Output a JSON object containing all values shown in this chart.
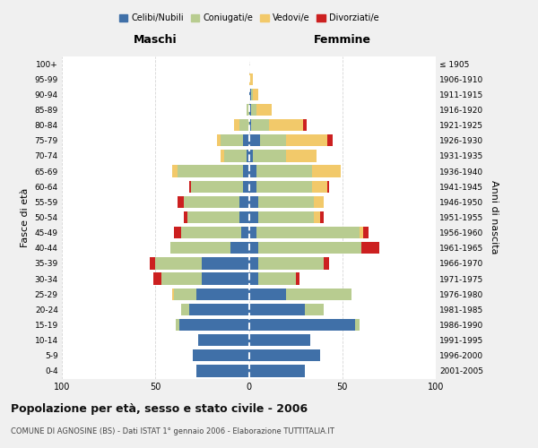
{
  "age_groups": [
    "0-4",
    "5-9",
    "10-14",
    "15-19",
    "20-24",
    "25-29",
    "30-34",
    "35-39",
    "40-44",
    "45-49",
    "50-54",
    "55-59",
    "60-64",
    "65-69",
    "70-74",
    "75-79",
    "80-84",
    "85-89",
    "90-94",
    "95-99",
    "100+"
  ],
  "birth_years": [
    "2001-2005",
    "1996-2000",
    "1991-1995",
    "1986-1990",
    "1981-1985",
    "1976-1980",
    "1971-1975",
    "1966-1970",
    "1961-1965",
    "1956-1960",
    "1951-1955",
    "1946-1950",
    "1941-1945",
    "1936-1940",
    "1931-1935",
    "1926-1930",
    "1921-1925",
    "1916-1920",
    "1911-1915",
    "1906-1910",
    "≤ 1905"
  ],
  "colors": {
    "celibi": "#4070a8",
    "coniugati": "#b8cc90",
    "vedovi": "#f2c96a",
    "divorziati": "#cc2020"
  },
  "males": {
    "celibi": [
      28,
      30,
      27,
      37,
      32,
      28,
      25,
      25,
      10,
      4,
      5,
      5,
      3,
      3,
      1,
      3,
      0,
      0,
      0,
      0,
      0
    ],
    "coniugati": [
      0,
      0,
      0,
      2,
      4,
      12,
      22,
      25,
      32,
      32,
      28,
      30,
      28,
      35,
      12,
      12,
      5,
      1,
      0,
      0,
      0
    ],
    "vedovi": [
      0,
      0,
      0,
      0,
      0,
      1,
      0,
      0,
      0,
      0,
      0,
      0,
      0,
      3,
      2,
      2,
      3,
      0,
      0,
      0,
      0
    ],
    "divorziati": [
      0,
      0,
      0,
      0,
      0,
      0,
      4,
      3,
      0,
      4,
      2,
      3,
      1,
      0,
      0,
      0,
      0,
      0,
      0,
      0,
      0
    ]
  },
  "females": {
    "celibi": [
      30,
      38,
      33,
      57,
      30,
      20,
      5,
      5,
      5,
      4,
      5,
      5,
      4,
      4,
      2,
      6,
      1,
      1,
      1,
      0,
      0
    ],
    "coniugati": [
      0,
      0,
      0,
      2,
      10,
      35,
      20,
      35,
      55,
      55,
      30,
      30,
      30,
      30,
      18,
      14,
      10,
      3,
      1,
      0,
      0
    ],
    "vedovi": [
      0,
      0,
      0,
      0,
      0,
      0,
      0,
      0,
      0,
      2,
      3,
      5,
      8,
      15,
      16,
      22,
      18,
      8,
      3,
      2,
      0
    ],
    "divorziati": [
      0,
      0,
      0,
      0,
      0,
      0,
      2,
      3,
      10,
      3,
      2,
      0,
      1,
      0,
      0,
      3,
      2,
      0,
      0,
      0,
      0
    ]
  },
  "xlim": 100,
  "title": "Popolazione per età, sesso e stato civile - 2006",
  "subtitle": "COMUNE DI AGNOSINE (BS) - Dati ISTAT 1° gennaio 2006 - Elaborazione TUTTITALIA.IT",
  "ylabel_left": "Fasce di età",
  "ylabel_right": "Anni di nascita",
  "xlabel_left": "Maschi",
  "xlabel_right": "Femmine",
  "legend_labels": [
    "Celibi/Nubili",
    "Coniugati/e",
    "Vedovi/e",
    "Divorziati/e"
  ],
  "bg_color": "#f0f0f0",
  "plot_bg": "#ffffff"
}
